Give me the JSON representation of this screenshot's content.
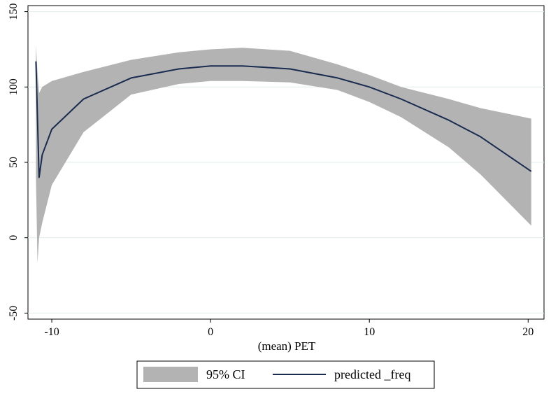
{
  "chart_data": {
    "type": "area",
    "xlabel": "(mean) PET",
    "ylabel": "",
    "xlim": [
      -11.5,
      21
    ],
    "ylim": [
      -54,
      154
    ],
    "xticks": [
      -10,
      0,
      10,
      20
    ],
    "yticks": [
      -50,
      0,
      50,
      100,
      150
    ],
    "grid": true,
    "legend_position": "bottom",
    "series": [
      {
        "name": "95% CI",
        "kind": "band",
        "color": "#b3b3b3",
        "x": [
          -11.0,
          -10.9,
          -10.8,
          -10.6,
          -10,
          -8,
          -5,
          -2,
          0,
          2,
          5,
          8,
          10,
          12,
          15,
          17,
          20.2
        ],
        "lower": [
          40,
          -17,
          0,
          10,
          35,
          70,
          95,
          102,
          104,
          104,
          103,
          98,
          90,
          80,
          60,
          42,
          8
        ],
        "upper": [
          128,
          110,
          96,
          100,
          104,
          110,
          118,
          123,
          125,
          126,
          124,
          115,
          108,
          100,
          92,
          86,
          79
        ]
      },
      {
        "name": "predicted _freq",
        "kind": "line",
        "color": "#1a2b50",
        "x": [
          -11.0,
          -10.8,
          -10.6,
          -10,
          -8,
          -5,
          -2,
          0,
          2,
          5,
          8,
          10,
          12,
          15,
          17,
          20.2
        ],
        "y": [
          117,
          40,
          55,
          72,
          92,
          106,
          112,
          114,
          114,
          112,
          106,
          100,
          92,
          78,
          67,
          44
        ]
      }
    ]
  }
}
